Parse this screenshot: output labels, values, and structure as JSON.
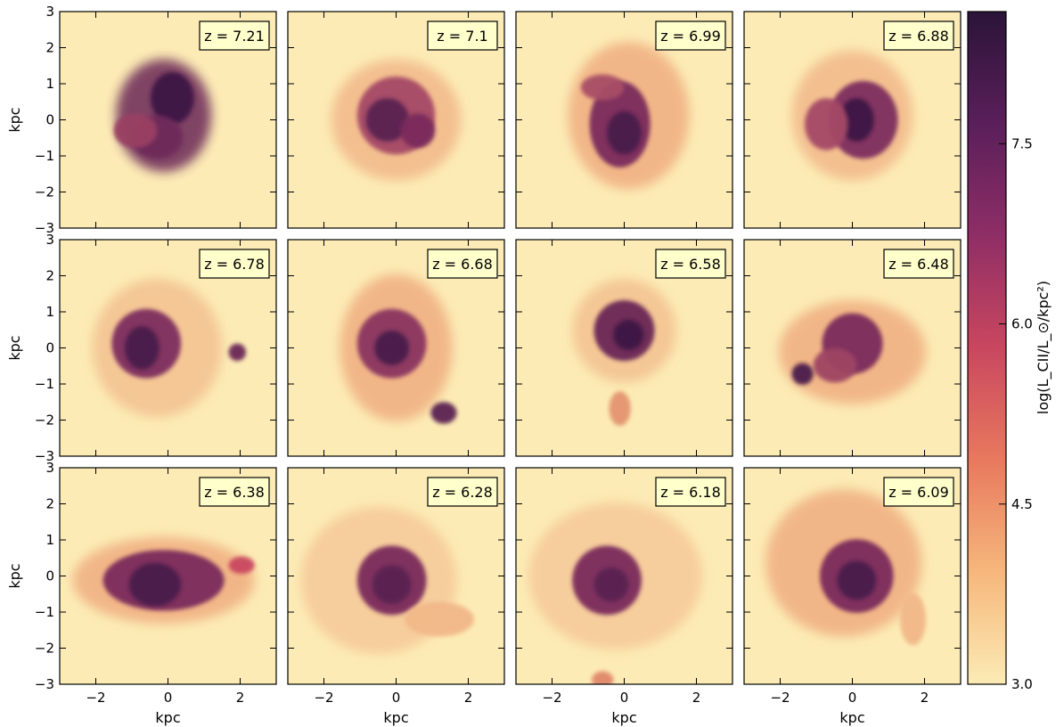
{
  "figure": {
    "x_axis_label": "kpc",
    "y_axis_label": "kpc",
    "x_ticks": [
      "−2",
      "0",
      "2"
    ],
    "y_ticks": [
      "−3",
      "−2",
      "−1",
      "0",
      "1",
      "2",
      "3"
    ],
    "axis_range": [
      -3,
      3
    ],
    "background_color": "#fcebb5",
    "label_box_color": "#ffffcc"
  },
  "panels": [
    {
      "z_label": "z = 7.21"
    },
    {
      "z_label": "z = 7.1"
    },
    {
      "z_label": "z = 6.99"
    },
    {
      "z_label": "z = 6.88"
    },
    {
      "z_label": "z = 6.78"
    },
    {
      "z_label": "z = 6.68"
    },
    {
      "z_label": "z = 6.58"
    },
    {
      "z_label": "z = 6.48"
    },
    {
      "z_label": "z = 6.38"
    },
    {
      "z_label": "z = 6.28"
    },
    {
      "z_label": "z = 6.18"
    },
    {
      "z_label": "z = 6.09"
    }
  ],
  "colorbar": {
    "label": "log(L_CII/L_⊙/kpc²)",
    "ticks": [
      "3.0",
      "4.5",
      "6.0",
      "7.5"
    ],
    "range": [
      3.0,
      8.6
    ],
    "colors": [
      "#fcebb5",
      "#f6b77c",
      "#e8795e",
      "#c9475f",
      "#8f2e66",
      "#5a1f5a",
      "#2b1438"
    ]
  }
}
